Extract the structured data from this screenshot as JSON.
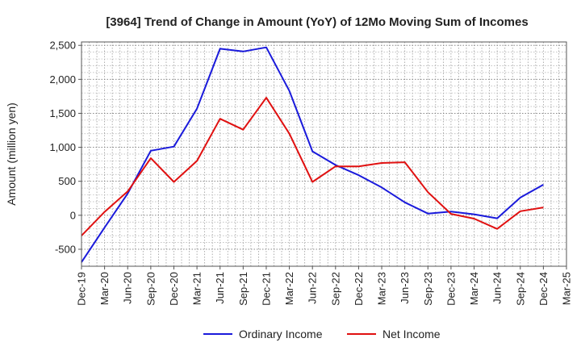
{
  "chart_data": {
    "type": "line",
    "title": "[3964]  Trend of Change in Amount (YoY) of 12Mo Moving Sum of Incomes",
    "xlabel": "",
    "ylabel": "Amount (million yen)",
    "ylim": [
      -750,
      2550
    ],
    "yticks": [
      -500,
      0,
      500,
      1000,
      1500,
      2000,
      2500
    ],
    "ytick_labels": [
      "-500",
      "0",
      "500",
      "1,000",
      "1,500",
      "2,000",
      "2,500"
    ],
    "categories": [
      "Dec-19",
      "Mar-20",
      "Jun-20",
      "Sep-20",
      "Dec-20",
      "Mar-21",
      "Jun-21",
      "Sep-21",
      "Dec-21",
      "Mar-22",
      "Jun-22",
      "Sep-22",
      "Dec-22",
      "Mar-23",
      "Jun-23",
      "Sep-23",
      "Dec-23",
      "Mar-24",
      "Jun-24",
      "Sep-24",
      "Dec-24",
      "Mar-25"
    ],
    "series": [
      {
        "name": "Ordinary Income",
        "color": "#1a1adb",
        "values": [
          -690,
          -180,
          320,
          950,
          1010,
          1570,
          2450,
          2410,
          2470,
          1830,
          940,
          740,
          590,
          410,
          190,
          25,
          55,
          15,
          -45,
          260,
          450,
          null
        ]
      },
      {
        "name": "Net Income",
        "color": "#e01010",
        "values": [
          -300,
          50,
          350,
          840,
          490,
          800,
          1420,
          1260,
          1730,
          1200,
          490,
          720,
          720,
          770,
          780,
          340,
          20,
          -50,
          -200,
          60,
          115,
          null
        ]
      }
    ],
    "grid": true,
    "legend_position": "bottom-center"
  }
}
